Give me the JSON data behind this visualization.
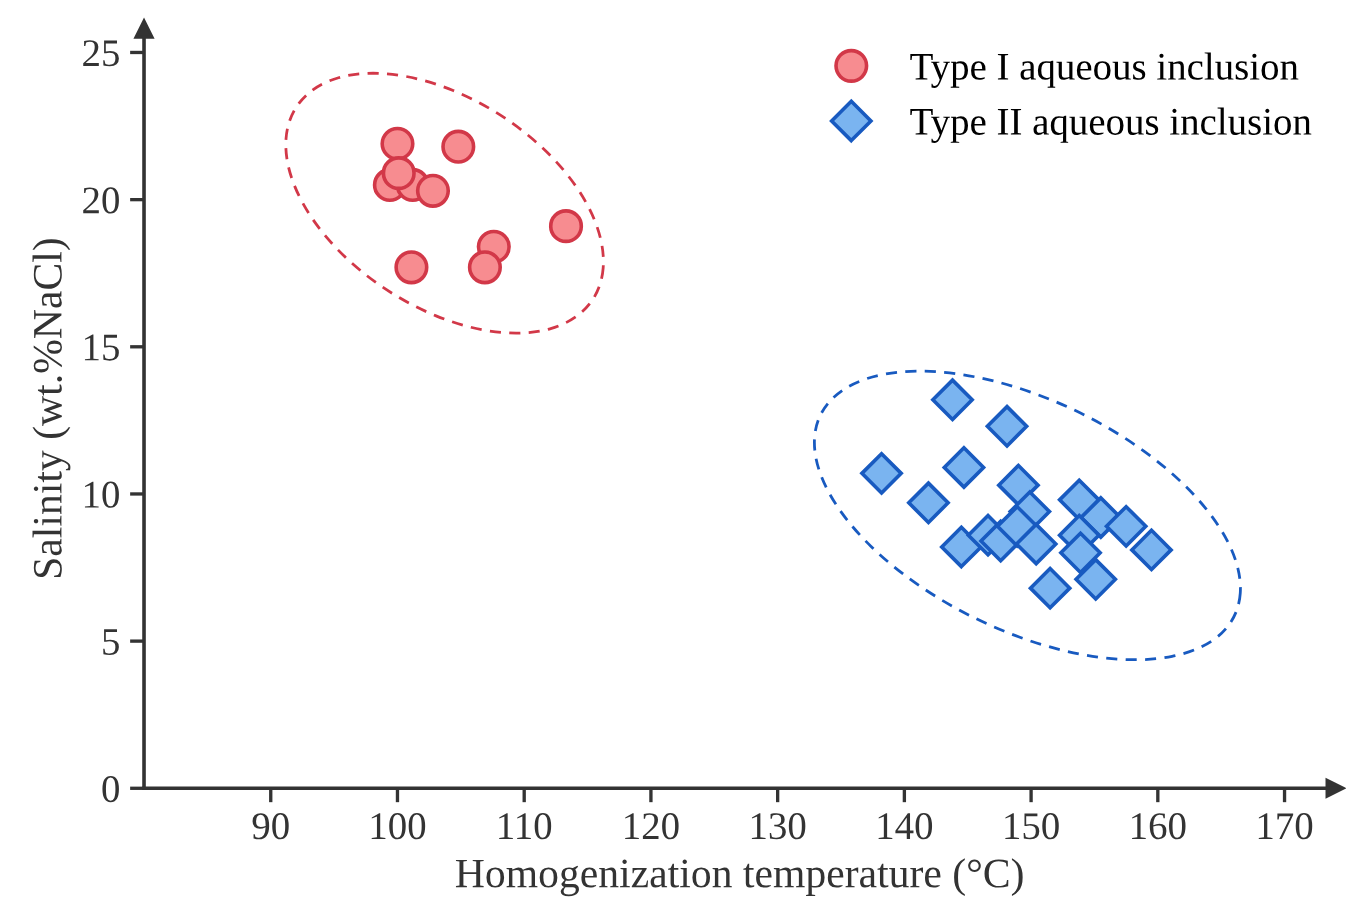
{
  "chart_data": {
    "type": "scatter",
    "xlabel": "Homogenization temperature (°C)",
    "ylabel": "Salinity (wt.%NaCl)",
    "xlim": [
      80,
      174
    ],
    "ylim": [
      0,
      25.8
    ],
    "xticks": [
      90,
      100,
      110,
      120,
      130,
      140,
      150,
      160,
      170
    ],
    "yticks": [
      0,
      5,
      10,
      15,
      20,
      25
    ],
    "grid": false,
    "legend": "top right",
    "series": [
      {
        "name": "Type I aqueous inclusion",
        "color": "#f78c90",
        "marker": "circle",
        "x": [
          100.0,
          104.8,
          99.4,
          101.2,
          102.8,
          113.3,
          107.6,
          106.9,
          101.1,
          100.1
        ],
        "values": [
          21.9,
          21.8,
          20.5,
          20.5,
          20.3,
          19.1,
          18.4,
          17.7,
          17.7,
          20.9
        ]
      },
      {
        "name": "Type II aqueous inclusion",
        "color": "#7ab4f0",
        "marker": "diamond",
        "x": [
          143.8,
          148.1,
          138.2,
          144.7,
          141.9,
          149.0,
          149.9,
          153.8,
          155.5,
          157.5,
          159.5,
          144.5,
          146.6,
          147.6,
          148.9,
          150.4,
          153.8,
          153.9,
          151.5,
          155.1
        ],
        "values": [
          13.2,
          12.3,
          10.7,
          10.9,
          9.7,
          10.3,
          9.4,
          9.8,
          9.2,
          8.9,
          8.1,
          8.2,
          8.6,
          8.4,
          8.9,
          8.3,
          8.6,
          8.0,
          6.8,
          7.1
        ]
      }
    ]
  }
}
